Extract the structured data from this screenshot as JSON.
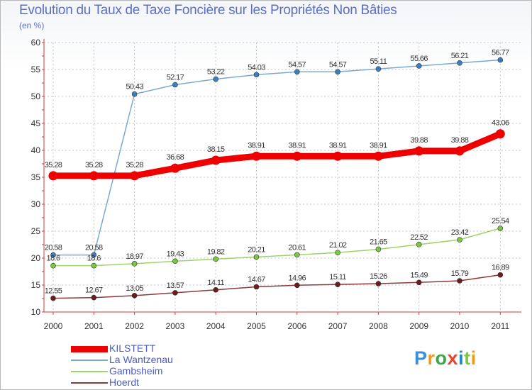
{
  "title": "Evolution du Taux de Taxe Foncière sur les Propriétés Non Bâties",
  "unit_label": "(en %)",
  "chart_data": {
    "type": "line",
    "title": "Evolution du Taux de Taxe Foncière sur les Propriétés Non Bâties",
    "ylabel": "(en %)",
    "xlabel": "",
    "ylim": [
      10,
      60
    ],
    "yticks": [
      10,
      15,
      20,
      25,
      30,
      35,
      40,
      45,
      50,
      55,
      60
    ],
    "grid": true,
    "categories": [
      "2000",
      "2001",
      "2002",
      "2003",
      "2004",
      "2005",
      "2006",
      "2007",
      "2008",
      "2009",
      "2010",
      "2011"
    ],
    "series": [
      {
        "name": "KILSTETT",
        "color": "#ee0000",
        "emphasis": true,
        "values": [
          35.28,
          35.28,
          35.28,
          36.68,
          38.15,
          38.91,
          38.91,
          38.91,
          38.91,
          39.88,
          39.88,
          43.06
        ],
        "labels": [
          "35.28",
          "35.28",
          "35.28",
          "36.68",
          "38.15",
          "38.91",
          "38.91",
          "38.91",
          "38.91",
          "39.88",
          "39.88",
          "43.06"
        ]
      },
      {
        "name": "La Wantzenau",
        "color": "#7ba9d0",
        "marker": "#3a7fc4",
        "values": [
          20.58,
          20.58,
          50.43,
          52.17,
          53.22,
          54.03,
          54.57,
          54.57,
          55.11,
          55.66,
          56.21,
          56.77
        ],
        "labels": [
          "20.58",
          "20.58",
          "50.43",
          "52.17",
          "53.22",
          "54.03",
          "54.57",
          "54.57",
          "55.11",
          "55.66",
          "56.21",
          "56.77"
        ]
      },
      {
        "name": "Gambsheim",
        "color": "#9ed36a",
        "marker": "#7ac943",
        "values": [
          18.6,
          18.6,
          18.97,
          19.43,
          19.82,
          20.21,
          20.61,
          21.02,
          21.65,
          22.52,
          23.42,
          25.54
        ],
        "labels": [
          "18.6",
          "18.6",
          "18.97",
          "19.43",
          "19.82",
          "20.21",
          "20.61",
          "21.02",
          "21.65",
          "22.52",
          "23.42",
          "25.54"
        ]
      },
      {
        "name": "Hoerdt",
        "color": "#8a3a3a",
        "marker": "#6b1c1c",
        "values": [
          12.55,
          12.67,
          13.05,
          13.57,
          14.11,
          14.67,
          14.96,
          15.11,
          15.26,
          15.49,
          15.79,
          16.89
        ],
        "labels": [
          "12.55",
          "12.67",
          "13.05",
          "13.57",
          "14.11",
          "14.67",
          "14.96",
          "15.11",
          "15.26",
          "15.49",
          "15.79",
          "16.89"
        ]
      }
    ]
  },
  "logo": {
    "letters": [
      "P",
      "r",
      "o",
      "x",
      "i",
      "t",
      "i"
    ],
    "colors": [
      "#3a8fd8",
      "#f29a1e",
      "#3aa845",
      "#e8452e",
      "#1e88c8",
      "#7ac943",
      "#f29a1e"
    ]
  }
}
